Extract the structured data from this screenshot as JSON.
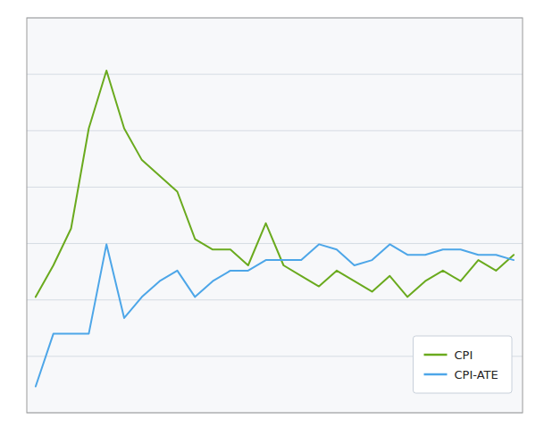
{
  "chart_data": {
    "type": "line",
    "categories": [
      null,
      null,
      null,
      null,
      null,
      null,
      null,
      null,
      null,
      null,
      null,
      null,
      null,
      null,
      null,
      null,
      null,
      null,
      null,
      null,
      null,
      null,
      null,
      null,
      null,
      null,
      null,
      null
    ],
    "series": [
      {
        "name": "CPI",
        "color": "#6aaa1e",
        "values": [
          2.2,
          2.8,
          3.5,
          5.4,
          6.5,
          5.4,
          4.8,
          4.5,
          4.2,
          3.3,
          3.1,
          3.1,
          2.8,
          3.6,
          2.8,
          2.6,
          2.4,
          2.7,
          2.5,
          2.3,
          2.6,
          2.2,
          2.5,
          2.7,
          2.5,
          2.9,
          2.7,
          3.0
        ]
      },
      {
        "name": "CPI-ATE",
        "color": "#4da6e8",
        "values": [
          0.5,
          1.5,
          1.5,
          1.5,
          3.2,
          1.8,
          2.2,
          2.5,
          2.7,
          2.2,
          2.5,
          2.7,
          2.7,
          2.9,
          2.9,
          2.9,
          3.2,
          3.1,
          2.8,
          2.9,
          3.2,
          3.0,
          3.0,
          3.1,
          3.1,
          3.0,
          3.0,
          2.9
        ]
      }
    ],
    "ylim": [
      0.0,
      7.5
    ],
    "yticks": [
      0,
      1.0714285714285714,
      2.142857142857143,
      3.2142857142857144,
      4.285714285714286,
      5.357142857142857,
      6.428571428571429,
      7.5
    ],
    "tick_labels": false,
    "grid": true,
    "legend": "lower right"
  }
}
